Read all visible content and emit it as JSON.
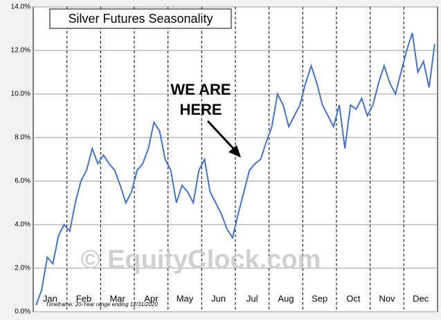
{
  "chart_data": {
    "type": "line",
    "title": "Silver Futures Seasonality",
    "annotations": [
      "WE ARE",
      "HERE"
    ],
    "watermark": "© EquityClock.com",
    "footnote": "Timeframe:  20-Year range ending 12/31/2020",
    "categories": [
      null,
      null,
      "Jan",
      null,
      null,
      null,
      null,
      null,
      "Feb",
      null,
      null,
      null,
      null,
      null,
      "Mar",
      null,
      null,
      null,
      null,
      null,
      "Apr",
      null,
      null,
      null,
      null,
      null,
      "May",
      null,
      null,
      null,
      null,
      null,
      "Jun",
      null,
      null,
      null,
      null,
      null,
      "Jul",
      null,
      null,
      null,
      null,
      null,
      "Aug",
      null,
      null,
      null,
      null,
      null,
      "Sep",
      null,
      null,
      null,
      null,
      null,
      "Oct",
      null,
      null,
      null,
      null,
      null,
      "Nov",
      null,
      null,
      null,
      null,
      null,
      "Dec",
      null,
      null,
      null
    ],
    "series": [
      {
        "name": "Silver Futures",
        "color": "#4472c4",
        "values": [
          0.3,
          1.0,
          2.5,
          2.2,
          3.5,
          4.0,
          3.7,
          5.0,
          6.0,
          6.5,
          7.5,
          6.8,
          7.2,
          6.8,
          6.5,
          5.8,
          5.0,
          5.5,
          6.5,
          6.8,
          7.5,
          8.7,
          8.3,
          7.0,
          6.5,
          5.0,
          5.8,
          5.5,
          5.0,
          6.5,
          7.0,
          5.5,
          5.0,
          4.5,
          3.8,
          3.4,
          4.5,
          5.5,
          6.5,
          6.8,
          7.0,
          7.8,
          8.5,
          10.0,
          9.5,
          8.5,
          9.0,
          9.5,
          10.5,
          11.3,
          10.5,
          9.5,
          9.0,
          8.5,
          9.5,
          7.5,
          9.5,
          9.3,
          9.8,
          9.0,
          9.5,
          10.5,
          11.3,
          10.5,
          10.0,
          11.0,
          12.0,
          12.8,
          11.0,
          11.5,
          10.3,
          12.3
        ]
      }
    ],
    "ylim": [
      0,
      14
    ],
    "yticks": [
      {
        "value": 0,
        "label": "0.0%"
      },
      {
        "value": 2,
        "label": "2.0%"
      },
      {
        "value": 4,
        "label": "4.0%"
      },
      {
        "value": 6,
        "label": "6.0%"
      },
      {
        "value": 8,
        "label": "8.0%"
      },
      {
        "value": 10,
        "label": "10.0%"
      },
      {
        "value": 12,
        "label": "12.0%"
      },
      {
        "value": 14,
        "label": "14.0%"
      }
    ],
    "grid": true
  }
}
